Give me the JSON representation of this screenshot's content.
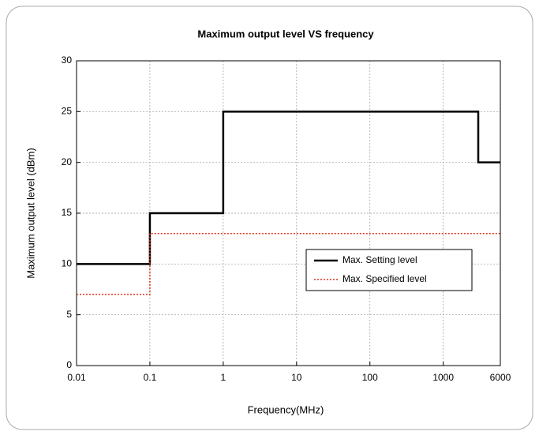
{
  "chart_data": {
    "type": "line",
    "title": "Maximum output level VS frequency",
    "x_label": "Frequency(MHz)",
    "y_label": "Maximum output level (dBm)",
    "x_scale": "log",
    "grid": true,
    "legend": "lower right",
    "xlim": [
      0.01,
      6000
    ],
    "xticks": [
      0.01,
      0.1,
      1,
      10,
      100,
      1000,
      6000
    ],
    "ylim": [
      0,
      30
    ],
    "yticks": [
      0,
      5,
      10,
      15,
      20,
      25,
      30
    ],
    "series": [
      {
        "name": "Max. Setting level",
        "color": "#000000",
        "style": "solid",
        "x": [
          0.01,
          0.1,
          0.1,
          1,
          1,
          3000,
          3000,
          6000
        ],
        "values": [
          10,
          10,
          15,
          15,
          25,
          25,
          20,
          20
        ]
      },
      {
        "name": "Max. Specified level",
        "color": "#e0301e",
        "style": "dotted",
        "x": [
          0.01,
          0.1,
          0.1,
          6000
        ],
        "values": [
          7,
          7,
          13,
          13
        ]
      }
    ]
  }
}
